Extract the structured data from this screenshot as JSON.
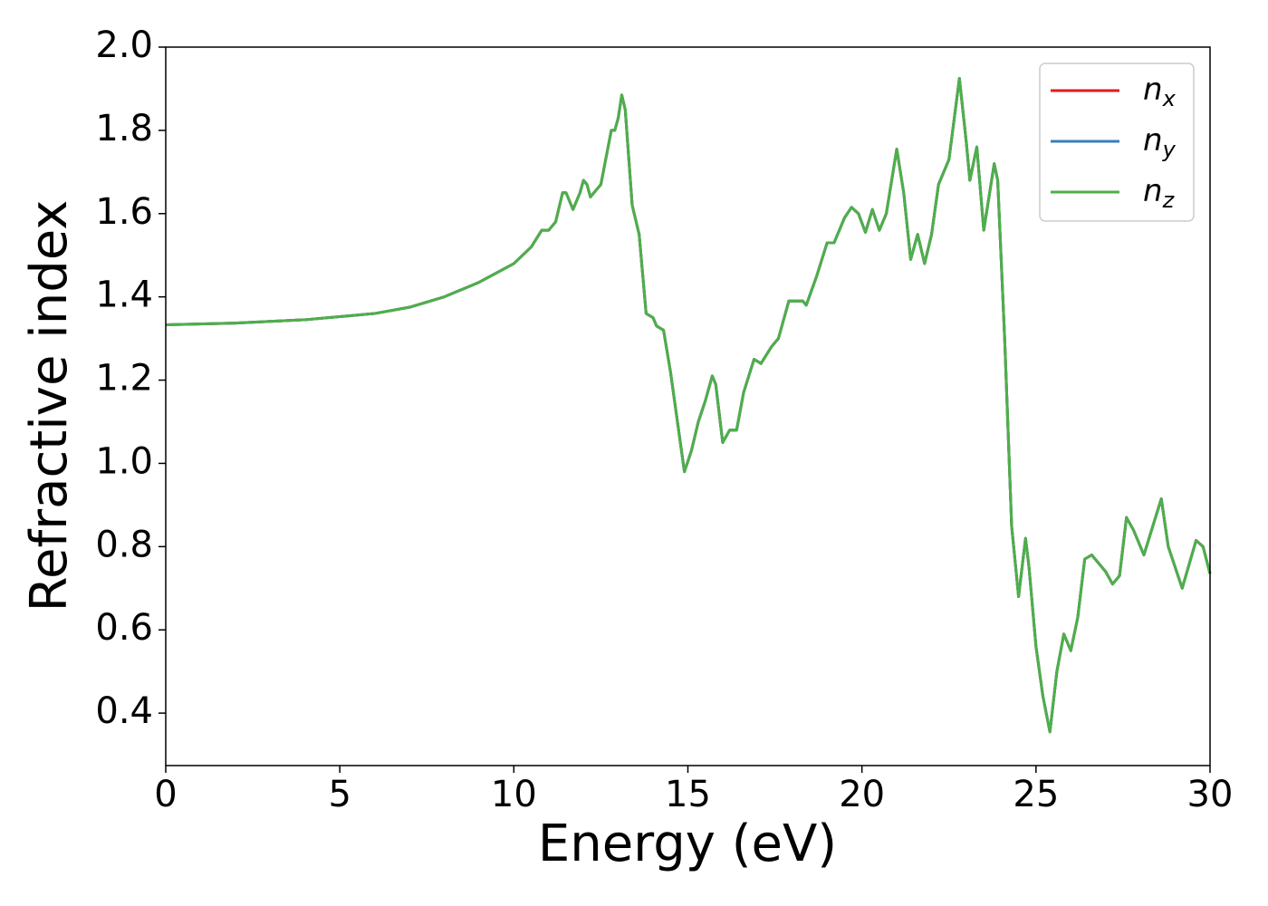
{
  "chart_data": {
    "type": "line",
    "x_label": "Energy (eV)",
    "y_label": "Refractive index",
    "x": [
      0,
      2,
      4,
      6,
      7,
      8,
      9,
      10,
      10.5,
      10.8,
      11.0,
      11.2,
      11.4,
      11.5,
      11.7,
      11.9,
      12.0,
      12.1,
      12.2,
      12.4,
      12.5,
      12.8,
      12.9,
      13.0,
      13.1,
      13.2,
      13.4,
      13.6,
      13.8,
      14.0,
      14.1,
      14.3,
      14.5,
      14.9,
      15.1,
      15.3,
      15.5,
      15.7,
      15.8,
      16.0,
      16.2,
      16.4,
      16.6,
      16.9,
      17.1,
      17.4,
      17.6,
      17.9,
      18.1,
      18.3,
      18.4,
      18.7,
      19.0,
      19.2,
      19.5,
      19.7,
      19.9,
      20.1,
      20.3,
      20.5,
      20.7,
      21.0,
      21.2,
      21.4,
      21.6,
      21.8,
      22.0,
      22.2,
      22.5,
      22.8,
      23.0,
      23.1,
      23.3,
      23.5,
      23.8,
      23.9,
      24.1,
      24.3,
      24.5,
      24.7,
      24.8,
      25.0,
      25.2,
      25.4,
      25.6,
      25.8,
      26.0,
      26.2,
      26.4,
      26.6,
      26.8,
      27.0,
      27.2,
      27.4,
      27.6,
      27.8,
      28.1,
      28.6,
      28.8,
      29.2,
      29.6,
      29.8,
      30.0
    ],
    "series": [
      {
        "name": "n_x",
        "color": "#e41a1c",
        "values": [
          1.333,
          1.337,
          1.345,
          1.36,
          1.375,
          1.4,
          1.435,
          1.48,
          1.52,
          1.56,
          1.56,
          1.58,
          1.65,
          1.65,
          1.61,
          1.65,
          1.68,
          1.67,
          1.64,
          1.66,
          1.67,
          1.8,
          1.8,
          1.83,
          1.885,
          1.85,
          1.62,
          1.55,
          1.36,
          1.35,
          1.33,
          1.32,
          1.22,
          0.98,
          1.03,
          1.1,
          1.15,
          1.21,
          1.19,
          1.05,
          1.08,
          1.08,
          1.17,
          1.25,
          1.24,
          1.28,
          1.3,
          1.39,
          1.39,
          1.39,
          1.38,
          1.45,
          1.53,
          1.53,
          1.59,
          1.615,
          1.6,
          1.555,
          1.61,
          1.56,
          1.6,
          1.755,
          1.65,
          1.49,
          1.55,
          1.48,
          1.55,
          1.67,
          1.73,
          1.925,
          1.77,
          1.68,
          1.76,
          1.56,
          1.72,
          1.68,
          1.3,
          0.85,
          0.68,
          0.82,
          0.75,
          0.56,
          0.44,
          0.355,
          0.5,
          0.59,
          0.55,
          0.63,
          0.77,
          0.78,
          0.76,
          0.74,
          0.71,
          0.73,
          0.87,
          0.84,
          0.78,
          0.915,
          0.8,
          0.7,
          0.815,
          0.8,
          0.735
        ]
      },
      {
        "name": "n_y",
        "color": "#377eb8",
        "values": [
          1.333,
          1.337,
          1.345,
          1.36,
          1.375,
          1.4,
          1.435,
          1.48,
          1.52,
          1.56,
          1.56,
          1.58,
          1.65,
          1.65,
          1.61,
          1.65,
          1.68,
          1.67,
          1.64,
          1.66,
          1.67,
          1.8,
          1.8,
          1.83,
          1.885,
          1.85,
          1.62,
          1.55,
          1.36,
          1.35,
          1.33,
          1.32,
          1.22,
          0.98,
          1.03,
          1.1,
          1.15,
          1.21,
          1.19,
          1.05,
          1.08,
          1.08,
          1.17,
          1.25,
          1.24,
          1.28,
          1.3,
          1.39,
          1.39,
          1.39,
          1.38,
          1.45,
          1.53,
          1.53,
          1.59,
          1.615,
          1.6,
          1.555,
          1.61,
          1.56,
          1.6,
          1.755,
          1.65,
          1.49,
          1.55,
          1.48,
          1.55,
          1.67,
          1.73,
          1.925,
          1.77,
          1.68,
          1.76,
          1.56,
          1.72,
          1.68,
          1.3,
          0.85,
          0.68,
          0.82,
          0.75,
          0.56,
          0.44,
          0.355,
          0.5,
          0.59,
          0.55,
          0.63,
          0.77,
          0.78,
          0.76,
          0.74,
          0.71,
          0.73,
          0.87,
          0.84,
          0.78,
          0.915,
          0.8,
          0.7,
          0.815,
          0.8,
          0.735
        ]
      },
      {
        "name": "n_z",
        "color": "#4daf4a",
        "values": [
          1.333,
          1.337,
          1.345,
          1.36,
          1.375,
          1.4,
          1.435,
          1.48,
          1.52,
          1.56,
          1.56,
          1.58,
          1.65,
          1.65,
          1.61,
          1.65,
          1.68,
          1.67,
          1.64,
          1.66,
          1.67,
          1.8,
          1.8,
          1.83,
          1.885,
          1.85,
          1.62,
          1.55,
          1.36,
          1.35,
          1.33,
          1.32,
          1.22,
          0.98,
          1.03,
          1.1,
          1.15,
          1.21,
          1.19,
          1.05,
          1.08,
          1.08,
          1.17,
          1.25,
          1.24,
          1.28,
          1.3,
          1.39,
          1.39,
          1.39,
          1.38,
          1.45,
          1.53,
          1.53,
          1.59,
          1.615,
          1.6,
          1.555,
          1.61,
          1.56,
          1.6,
          1.755,
          1.65,
          1.49,
          1.55,
          1.48,
          1.55,
          1.67,
          1.73,
          1.925,
          1.77,
          1.68,
          1.76,
          1.56,
          1.72,
          1.68,
          1.3,
          0.85,
          0.68,
          0.82,
          0.75,
          0.56,
          0.44,
          0.355,
          0.5,
          0.59,
          0.55,
          0.63,
          0.77,
          0.78,
          0.76,
          0.74,
          0.71,
          0.73,
          0.87,
          0.84,
          0.78,
          0.915,
          0.8,
          0.7,
          0.815,
          0.8,
          0.735
        ]
      }
    ],
    "xlim": [
      0,
      30
    ],
    "xticks": [
      0,
      5,
      10,
      15,
      20,
      25,
      30
    ],
    "ylim": [
      0.274,
      2.0
    ],
    "yticks": [
      0.4,
      0.6,
      0.8,
      {
        "value": 1.0,
        "label": "1.0"
      },
      1.2,
      1.4,
      1.6,
      1.8,
      {
        "value": 2.0,
        "label": "2.0"
      }
    ],
    "grid": false,
    "legend": "upper right"
  }
}
